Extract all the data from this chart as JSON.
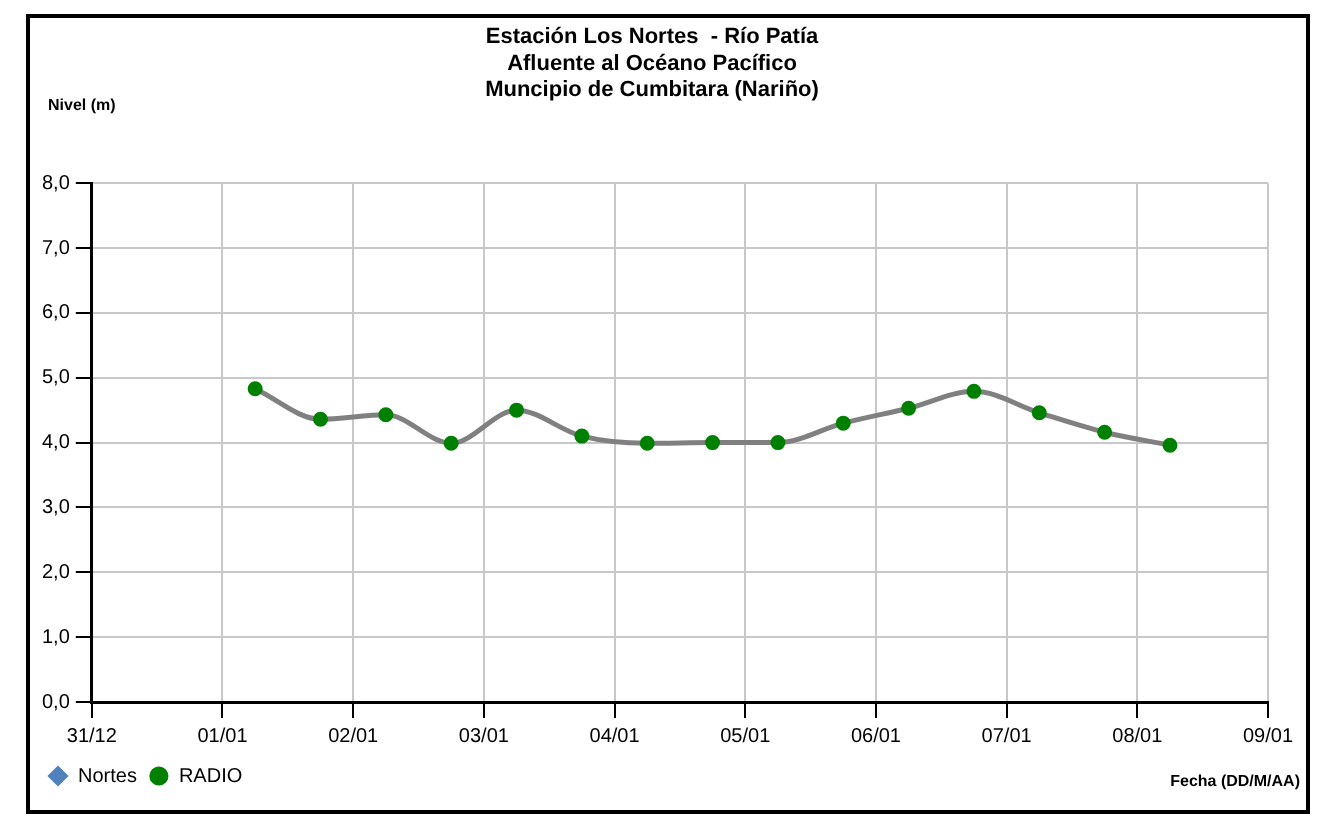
{
  "chart_data": {
    "type": "line",
    "title": "Estación Los Nortes  - Río Patía\nAfluente al Océano Pacífico\nMuncipio de Cumbitara (Nariño)",
    "xlabel": "Fecha (DD/M/AA)",
    "ylabel": "Nivel (m)",
    "categories": [
      "31/12",
      null,
      null,
      null,
      "01/01",
      null,
      null,
      null,
      "02/01",
      null,
      null,
      null,
      "03/01",
      null,
      null,
      null,
      "04/01",
      null,
      null,
      null,
      "05/01",
      null,
      null,
      null,
      "06/01",
      null,
      null,
      null,
      "07/01",
      null,
      null,
      null,
      "08/01",
      null,
      null,
      null,
      "09/01"
    ],
    "series": [
      {
        "name": "Nortes",
        "color": "#4f81bd",
        "marker": "diamond",
        "values": [
          null,
          null,
          null,
          null,
          null,
          null,
          null,
          null,
          null,
          null,
          null,
          null,
          null,
          null,
          null,
          null,
          null,
          null,
          null,
          null,
          null,
          null,
          null,
          null,
          null,
          null,
          null,
          null,
          null,
          null,
          null,
          null,
          null,
          null,
          null,
          null,
          null
        ]
      },
      {
        "name": "RADIO",
        "color": "#808080",
        "marker": "circle",
        "colors": [
          "#008000",
          "#008000",
          "#008000",
          "#008000",
          "#008000",
          "#008000",
          "#008000",
          "#008000",
          "#008000",
          "#008000",
          "#008000",
          "#008000",
          "#008000",
          "#008000",
          "#008000",
          "#008000",
          "#008000",
          "#008000",
          "#008000",
          "#008000",
          "#008000",
          "#008000",
          "#008000",
          "#008000",
          "#008000",
          "#008000",
          "#008000",
          "#008000",
          "#008000",
          "#008000",
          "#008000",
          "#008000",
          "#008000",
          "#008000",
          "#008000",
          "#008000",
          "#008000"
        ],
        "values": [
          null,
          null,
          null,
          null,
          null,
          4.83,
          null,
          4.36,
          null,
          4.43,
          null,
          3.99,
          null,
          4.5,
          null,
          4.1,
          null,
          3.99,
          null,
          4.0,
          null,
          4.0,
          null,
          4.3,
          null,
          4.53,
          null,
          4.79,
          null,
          4.46,
          null,
          4.16,
          null,
          3.96,
          null,
          null,
          null
        ]
      }
    ],
    "ylim": [
      0,
      8
    ],
    "yticks": [
      {
        "value": 0,
        "label": "0,0"
      },
      {
        "value": 1,
        "label": "1,0"
      },
      {
        "value": 2,
        "label": "2,0"
      },
      {
        "value": 3,
        "label": "3,0"
      },
      {
        "value": 4,
        "label": "4,0"
      },
      {
        "value": 5,
        "label": "5,0"
      },
      {
        "value": 6,
        "label": "6,0"
      },
      {
        "value": 7,
        "label": "7,0"
      },
      {
        "value": 8,
        "label": "8,0"
      }
    ],
    "grid": true,
    "legend": "bottom left"
  }
}
